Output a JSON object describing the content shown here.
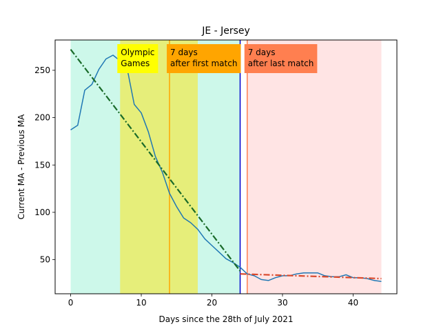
{
  "chart_data": {
    "type": "line",
    "title": "JE - Jersey",
    "xlabel": "Days since the 28th of July 2021",
    "ylabel": "Current MA - Previous MA",
    "xlim": [
      -2.2,
      46.2
    ],
    "ylim": [
      14,
      282
    ],
    "xticks": [
      0,
      10,
      20,
      30,
      40
    ],
    "yticks": [
      50,
      100,
      150,
      200,
      250
    ],
    "grid": false,
    "colors": {
      "series": "#1f77b4",
      "trend_before": "#1a6b2a",
      "trend_after": "#d9482b",
      "band_base": "#cdf8ea",
      "band_olympic": "#e6ee7a",
      "band_after_last": "#ffe4e4",
      "line_first_match": "#ffa500",
      "line_blue": "#0000cd",
      "line_last_match": "#ff7f50",
      "label_olympic": "#ffff00",
      "label_first": "#ffa500",
      "label_last": "#ff7f50"
    },
    "bands": [
      {
        "from": 0,
        "to": 24,
        "color_key": "band_base"
      },
      {
        "from": 7,
        "to": 18,
        "color_key": "band_olympic"
      },
      {
        "from": 25,
        "to": 44,
        "color_key": "band_after_last"
      }
    ],
    "vlines": [
      {
        "x": 14,
        "color_key": "line_first_match"
      },
      {
        "x": 24,
        "color_key": "line_blue"
      },
      {
        "x": 25,
        "color_key": "line_last_match"
      }
    ],
    "annotations": [
      {
        "text_lines": [
          "Olympic",
          "Games"
        ],
        "x": 7,
        "color_key": "label_olympic"
      },
      {
        "text_lines": [
          "7 days",
          "after first match"
        ],
        "x": 14,
        "color_key": "label_first"
      },
      {
        "text_lines": [
          "7 days",
          "after last match"
        ],
        "x": 25,
        "color_key": "label_last"
      }
    ],
    "series": [
      {
        "x": [
          0,
          1,
          2,
          3,
          4,
          5,
          6,
          7,
          8,
          9,
          10,
          11,
          12,
          13,
          14,
          15,
          16,
          17,
          18,
          19,
          20,
          21,
          22,
          23,
          24,
          25,
          26,
          27,
          28,
          29,
          30,
          31,
          32,
          33,
          34,
          35,
          36,
          37,
          38,
          39,
          40,
          41,
          42,
          43,
          44
        ],
        "values": [
          187,
          192,
          229,
          235,
          251,
          262,
          266,
          260,
          252,
          214,
          205,
          185,
          159,
          142,
          120,
          106,
          94,
          89,
          82,
          72,
          65,
          58,
          51,
          47,
          42,
          35,
          33,
          29,
          28,
          31,
          33,
          33,
          35,
          36,
          36,
          36,
          33,
          32,
          32,
          34,
          31,
          31,
          30,
          28,
          27
        ]
      }
    ],
    "trend_lines": [
      {
        "x": [
          0,
          24
        ],
        "values": [
          272,
          38
        ],
        "color_key": "trend_before"
      },
      {
        "x": [
          24,
          44
        ],
        "values": [
          35,
          30
        ],
        "color_key": "trend_after"
      }
    ]
  }
}
